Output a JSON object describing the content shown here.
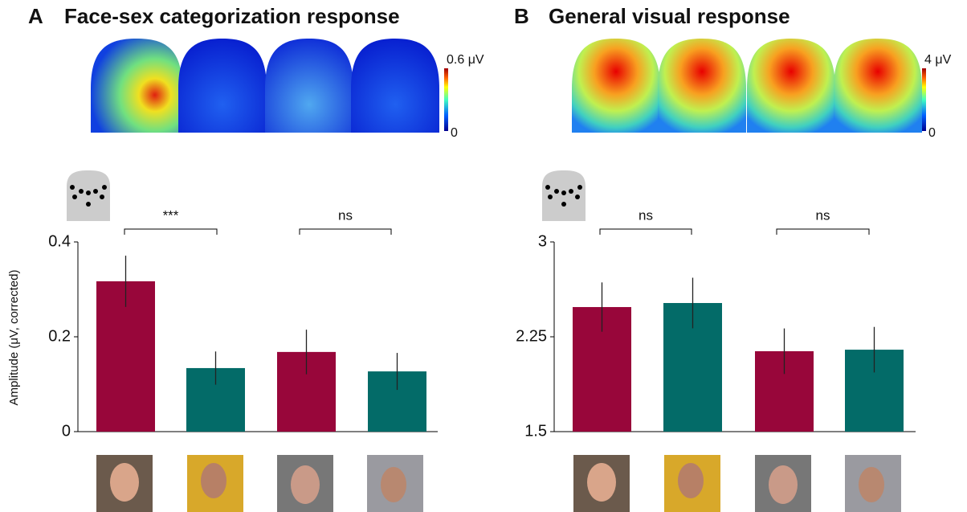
{
  "chart_data": [
    {
      "type": "bar",
      "panel": "A",
      "title": "Face-sex categorization response",
      "y_label": "Amplitude (μV, corrected)",
      "categories": [
        null,
        null,
        null,
        null
      ],
      "values": [
        0.317,
        0.134,
        0.168,
        0.127
      ],
      "errors": [
        0.054,
        0.035,
        0.047,
        0.039
      ],
      "colors": [
        "#98063a",
        "#036b68",
        "#98063a",
        "#036b68"
      ],
      "ylim": [
        0,
        0.4
      ],
      "yticks": [
        0,
        0.2,
        0.4
      ],
      "significance": [
        "***",
        "ns"
      ],
      "colorbar_labels": [
        "0.6 μV",
        "0"
      ]
    },
    {
      "type": "bar",
      "panel": "B",
      "title": "General visual response",
      "categories": [
        null,
        null,
        null,
        null
      ],
      "values": [
        2.485,
        2.517,
        2.136,
        2.148
      ],
      "errors": [
        0.195,
        0.2,
        0.18,
        0.18
      ],
      "colors": [
        "#98063a",
        "#036b68",
        "#98063a",
        "#036b68"
      ],
      "ylim": [
        1.5,
        3
      ],
      "yticks": [
        1.5,
        2.25,
        3
      ],
      "significance": [
        "ns",
        "ns"
      ],
      "colorbar_labels": [
        "4 μV",
        "0"
      ]
    }
  ]
}
